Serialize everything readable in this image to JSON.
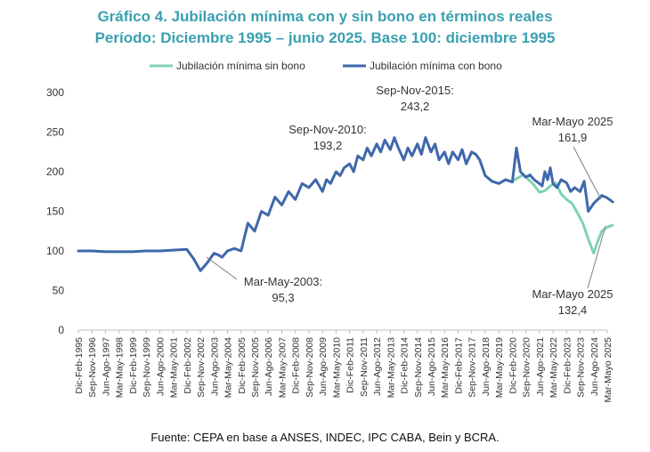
{
  "chart_data": {
    "type": "line",
    "title": "Gráfico 4. Jubilación mínima con y sin bono en términos reales",
    "subtitle": "Período: Diciembre 1995 – junio 2025. Base 100: diciembre 1995",
    "source": "Fuente: CEPA en base a ANSES, INDEC, IPC CABA, Bein y BCRA.",
    "ylim": [
      0,
      300
    ],
    "yticks": [
      0,
      50,
      100,
      150,
      200,
      250,
      300
    ],
    "grid": false,
    "legend_position": "top",
    "x_ticks": [
      "Dic-Feb-1995",
      "Sep-Nov-1996",
      "Jun-Ago-1997",
      "Mar-May-1998",
      "Dic-Feb-1999",
      "Sep-Nov-1999",
      "Jun-Ago-2000",
      "Mar-May-2001",
      "Dic-Feb-2002",
      "Sep-Nov-2002",
      "Jun-Ago-2003",
      "Mar-May-2004",
      "Dic-Feb-2005",
      "Sep-Nov-2005",
      "Jun-Ago-2006",
      "Mar-May-2007",
      "Dic-Feb-2008",
      "Sep-Nov-2008",
      "Jun-Ago-2009",
      "Mar-May-2010",
      "Dic-Feb-2011",
      "Sep-Nov-2011",
      "Jun-Ago-2012",
      "Mar-May-2013",
      "Dic-Feb-2014",
      "Sep-Nov-2014",
      "Jun-Ago-2015",
      "Mar-May-2016",
      "Dic-Feb-2017",
      "Sep-Nov-2017",
      "Jun-Ago-2018",
      "Mar-May-2019",
      "Dic-Feb-2020",
      "Sep-Nov-2020",
      "Jun-Ago-2021",
      "Mar-May-2022",
      "Dic-Feb-2023",
      "Sep-Nov-2023",
      "Jun-Ago-2024",
      "Mar-Mayo 2025"
    ],
    "series": [
      {
        "name": "Jubilación mínima sin bono",
        "color": "#7fd3b3",
        "x": [
          32,
          32.4,
          32.8,
          33.2,
          33.6,
          34,
          34.4,
          34.8,
          35.2,
          35.6,
          36,
          36.4,
          36.8,
          37.2,
          37.6,
          38,
          38.3,
          38.6,
          39,
          39.4
        ],
        "values": [
          188,
          192,
          196,
          190,
          183,
          174,
          176,
          182,
          186,
          172,
          165,
          160,
          148,
          135,
          115,
          97,
          112,
          125,
          130,
          132.4
        ]
      },
      {
        "name": "Jubilación mínima con bono",
        "color": "#3f68ab",
        "x": [
          0,
          1,
          2,
          3,
          4,
          5,
          6,
          7,
          8,
          8.5,
          9,
          9.5,
          10,
          10.3,
          10.6,
          11,
          11.5,
          12,
          12.5,
          13,
          13.5,
          14,
          14.5,
          15,
          15.5,
          16,
          16.5,
          17,
          17.5,
          18,
          18.3,
          18.6,
          19,
          19.3,
          19.6,
          20,
          20.3,
          20.6,
          21,
          21.3,
          21.6,
          22,
          22.3,
          22.6,
          23,
          23.3,
          23.6,
          24,
          24.3,
          24.6,
          25,
          25.3,
          25.6,
          26,
          26.3,
          26.6,
          27,
          27.3,
          27.6,
          28,
          28.3,
          28.6,
          29,
          29.3,
          29.6,
          30,
          30.5,
          31,
          31.5,
          32,
          32.3,
          32.6,
          33,
          33.3,
          33.6,
          34,
          34.2,
          34.4,
          34.6,
          34.8,
          35,
          35.3,
          35.6,
          35.8,
          36,
          36.3,
          36.6,
          37,
          37.3,
          37.6,
          38,
          38.3,
          38.6,
          39,
          39.4
        ],
        "values": [
          100,
          100,
          99,
          99,
          99,
          100,
          100,
          101,
          102,
          90,
          75,
          85,
          97,
          95,
          92,
          100,
          103,
          100,
          135,
          125,
          150,
          145,
          168,
          158,
          175,
          165,
          185,
          180,
          190,
          175,
          190,
          185,
          200,
          195,
          205,
          210,
          200,
          220,
          215,
          230,
          220,
          235,
          225,
          240,
          228,
          243,
          230,
          215,
          230,
          220,
          235,
          222,
          243.2,
          225,
          235,
          215,
          225,
          210,
          225,
          215,
          228,
          210,
          225,
          222,
          215,
          195,
          188,
          185,
          190,
          187,
          230,
          200,
          193,
          196,
          190,
          185,
          182,
          200,
          190,
          205,
          185,
          180,
          190,
          188,
          186,
          175,
          180,
          175,
          188,
          150,
          160,
          165,
          170,
          167,
          161.9
        ]
      }
    ],
    "annotations": [
      {
        "line1": "Sep-Nov-2010:",
        "line2": "193,2"
      },
      {
        "line1": "Sep-Nov-2015:",
        "line2": "243,2"
      },
      {
        "line1": "Mar-May-2003:",
        "line2": "95,3"
      },
      {
        "line1": "Mar-Mayo 2025",
        "line2": "161,9"
      },
      {
        "line1": "Mar-Mayo 2025",
        "line2": "132,4"
      }
    ]
  }
}
